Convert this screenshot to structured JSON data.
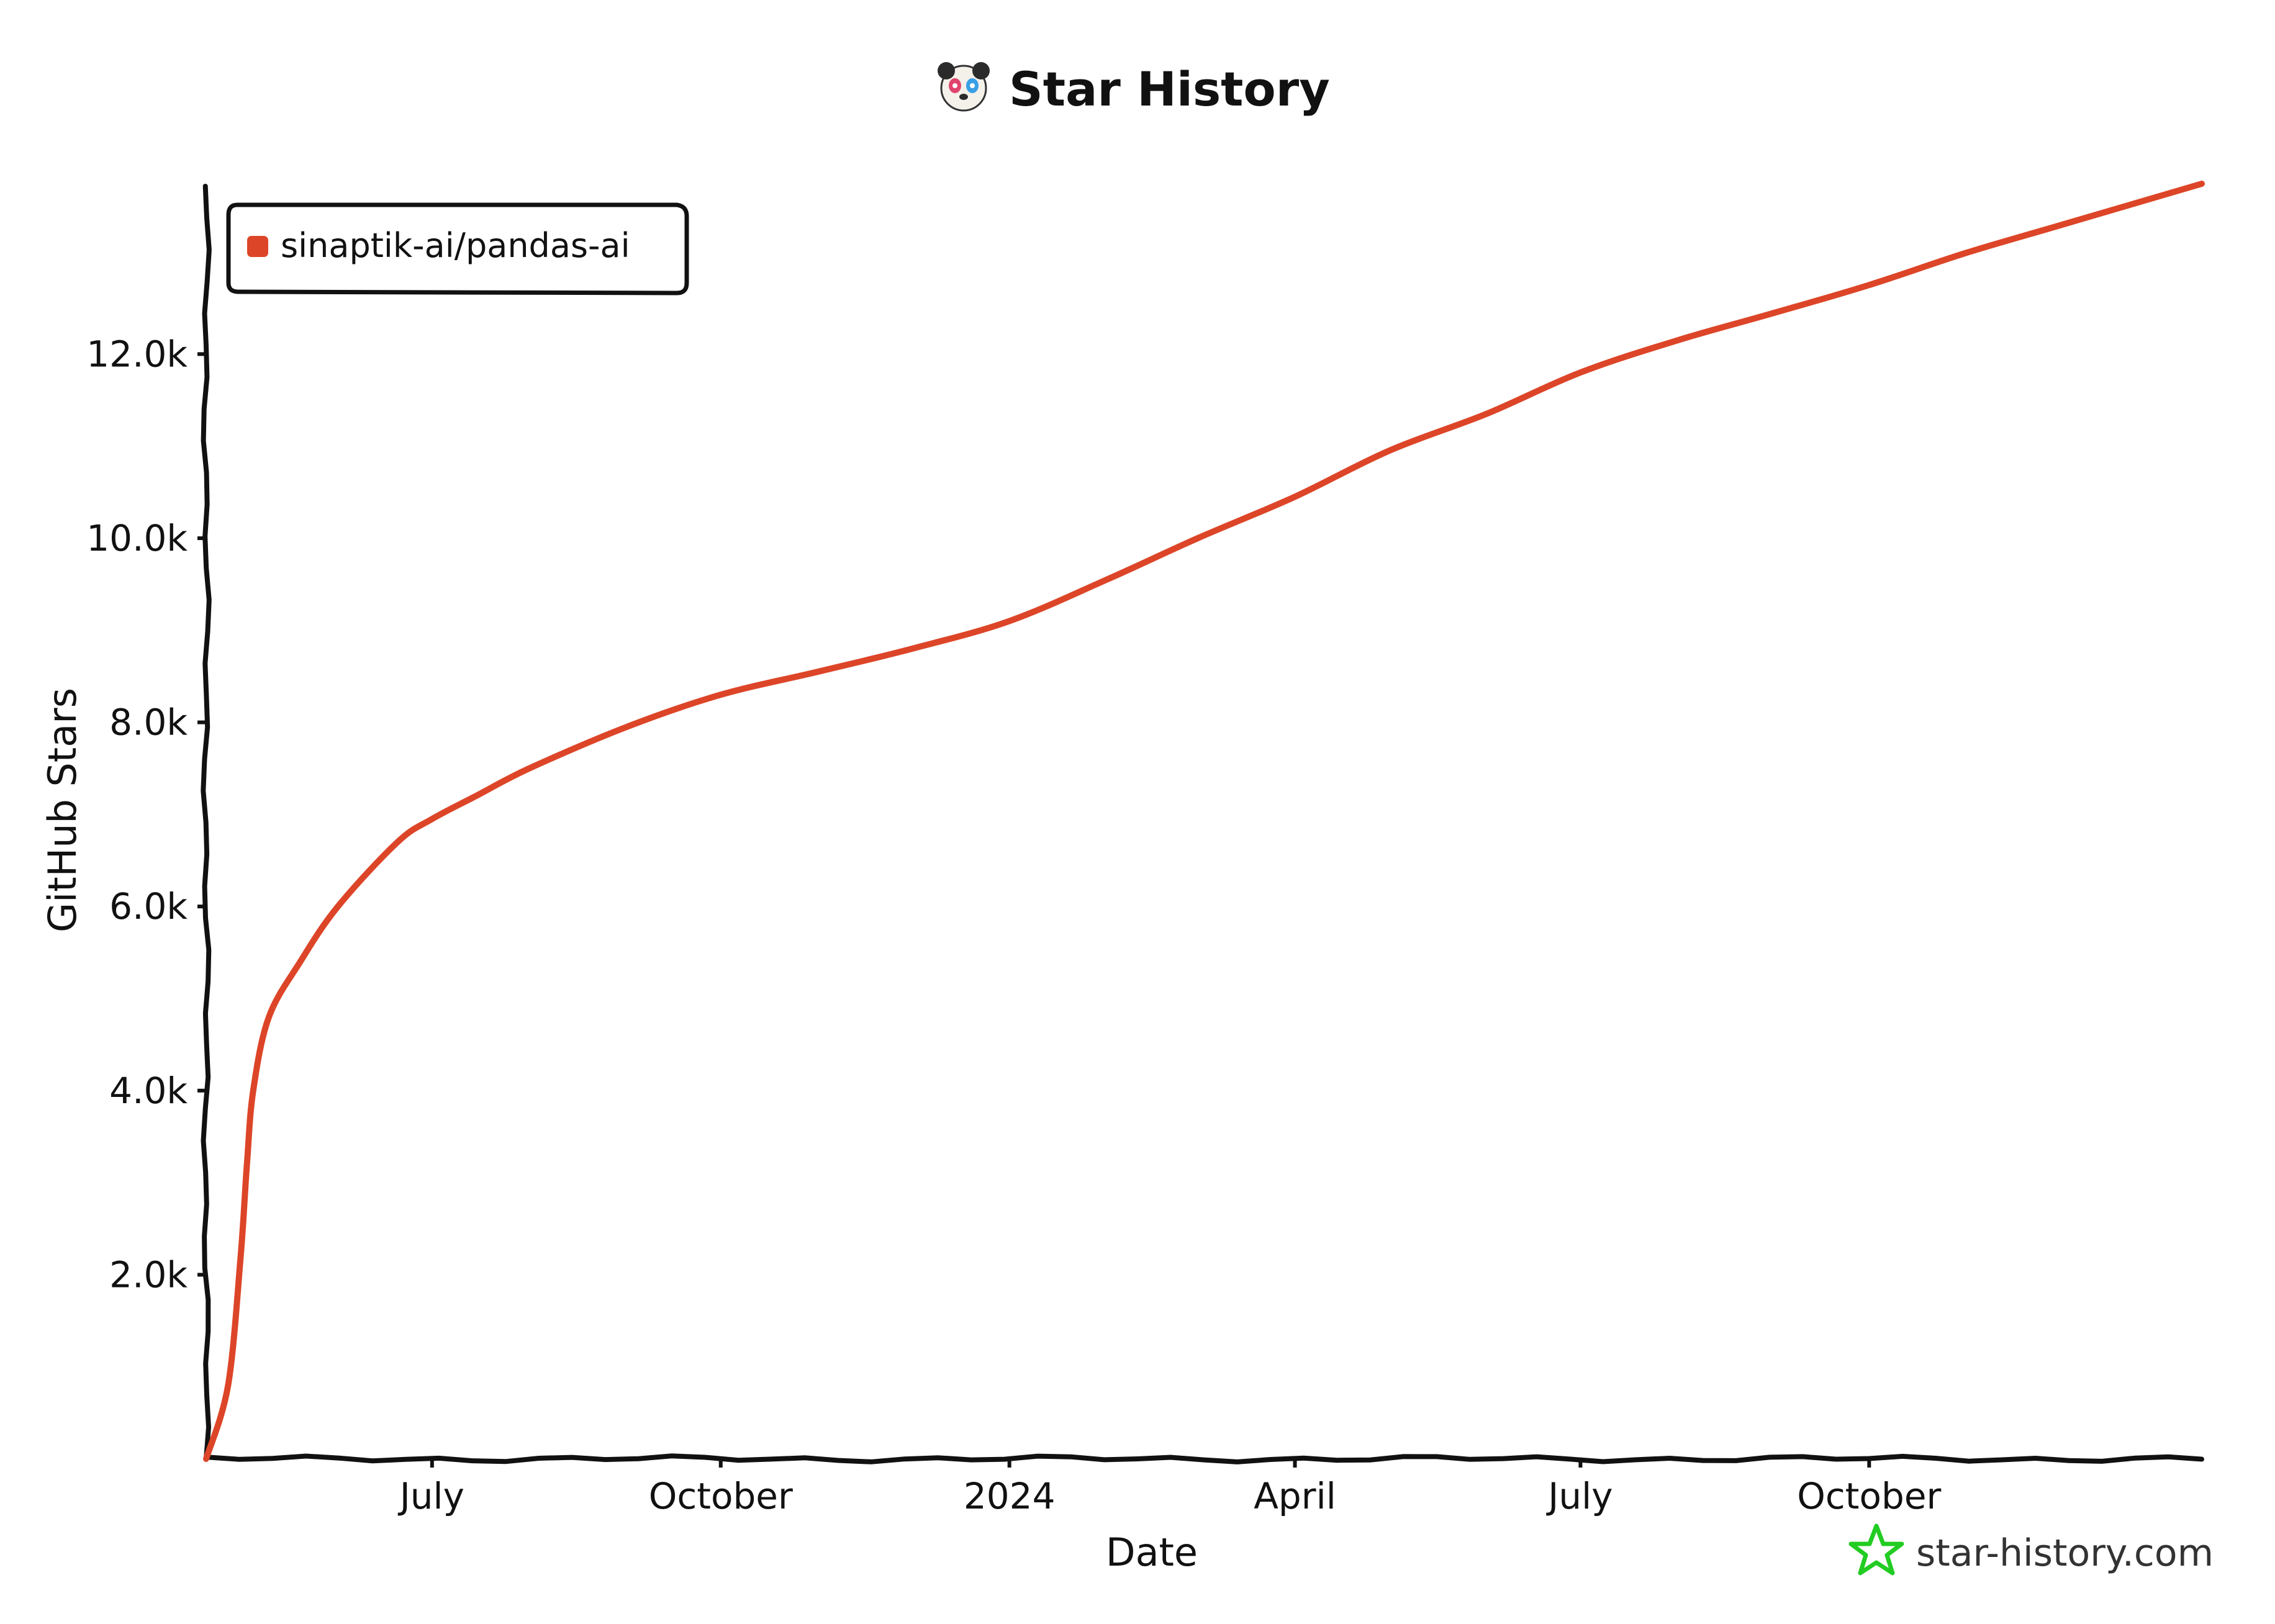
{
  "chart_data": {
    "type": "line",
    "title": "Star History",
    "xlabel": "Date",
    "ylabel": "GitHub Stars",
    "x_ticks": [
      {
        "date": "2023-07-01",
        "label": "July"
      },
      {
        "date": "2023-10-01",
        "label": "October"
      },
      {
        "date": "2024-01-01",
        "label": "2024"
      },
      {
        "date": "2024-04-01",
        "label": "April"
      },
      {
        "date": "2024-07-01",
        "label": "July"
      },
      {
        "date": "2024-10-01",
        "label": "October"
      }
    ],
    "y_ticks": [
      {
        "value": 2000,
        "label": "2.0k"
      },
      {
        "value": 4000,
        "label": "4.0k"
      },
      {
        "value": 6000,
        "label": "6.0k"
      },
      {
        "value": 8000,
        "label": "8.0k"
      },
      {
        "value": 10000,
        "label": "10.0k"
      },
      {
        "value": 12000,
        "label": "12.0k"
      }
    ],
    "xlim": [
      "2023-04-20",
      "2025-01-15"
    ],
    "ylim": [
      0,
      13850
    ],
    "grid": false,
    "legend_position": "top-left",
    "series": [
      {
        "name": "sinaptik-ai/pandas-ai",
        "color": "#dd4528",
        "points": [
          {
            "x": "2023-04-20",
            "y": 0
          },
          {
            "x": "2023-04-27",
            "y": 800
          },
          {
            "x": "2023-05-01",
            "y": 2200
          },
          {
            "x": "2023-05-03",
            "y": 3200
          },
          {
            "x": "2023-05-05",
            "y": 4000
          },
          {
            "x": "2023-05-10",
            "y": 4800
          },
          {
            "x": "2023-05-20",
            "y": 5400
          },
          {
            "x": "2023-06-01",
            "y": 6000
          },
          {
            "x": "2023-06-20",
            "y": 6700
          },
          {
            "x": "2023-07-01",
            "y": 6950
          },
          {
            "x": "2023-07-15",
            "y": 7200
          },
          {
            "x": "2023-08-01",
            "y": 7500
          },
          {
            "x": "2023-09-01",
            "y": 7950
          },
          {
            "x": "2023-10-01",
            "y": 8300
          },
          {
            "x": "2023-11-01",
            "y": 8550
          },
          {
            "x": "2023-12-01",
            "y": 8800
          },
          {
            "x": "2024-01-01",
            "y": 9100
          },
          {
            "x": "2024-02-01",
            "y": 9550
          },
          {
            "x": "2024-03-01",
            "y": 10000
          },
          {
            "x": "2024-04-01",
            "y": 10450
          },
          {
            "x": "2024-05-01",
            "y": 10950
          },
          {
            "x": "2024-06-01",
            "y": 11350
          },
          {
            "x": "2024-07-01",
            "y": 11800
          },
          {
            "x": "2024-08-01",
            "y": 12150
          },
          {
            "x": "2024-09-01",
            "y": 12450
          },
          {
            "x": "2024-10-01",
            "y": 12750
          },
          {
            "x": "2024-11-01",
            "y": 13100
          },
          {
            "x": "2024-12-01",
            "y": 13400
          },
          {
            "x": "2025-01-15",
            "y": 13850
          }
        ]
      }
    ]
  },
  "branding": {
    "site": "star-history.com",
    "logo_icon": "panda-icon",
    "brand_icon": "star-logo-icon"
  }
}
